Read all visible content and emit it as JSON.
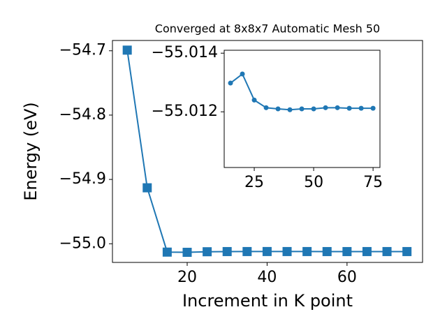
{
  "chart_data": [
    {
      "type": "line",
      "title": "Converged at 8x8x7 Automatic Mesh 50",
      "xlabel": "Increment in K point",
      "ylabel": "Energy (eV)",
      "x": [
        5,
        10,
        15,
        20,
        25,
        30,
        35,
        40,
        45,
        50,
        55,
        60,
        65,
        70,
        75
      ],
      "values": [
        -54.699,
        -54.913,
        -55.01298,
        -55.01329,
        -55.0124,
        -55.01214,
        -55.0121,
        -55.01207,
        -55.0121,
        -55.0121,
        -55.01214,
        -55.01214,
        -55.01212,
        -55.01212,
        -55.01212
      ],
      "color": "#1f77b4",
      "marker": "square",
      "xlim": [
        1.3,
        78.9
      ],
      "ylim": [
        -55.029,
        -54.684
      ],
      "xticks": [
        20,
        40,
        60
      ],
      "yticks": [
        {
          "value": -54.7,
          "label": "−54.7"
        },
        {
          "value": -54.8,
          "label": "−54.8"
        },
        {
          "value": -54.9,
          "label": "−54.9"
        },
        {
          "value": -55.0,
          "label": "−55.0"
        }
      ]
    },
    {
      "type": "line",
      "x": [
        15,
        20,
        25,
        30,
        35,
        40,
        45,
        50,
        55,
        60,
        65,
        70,
        75
      ],
      "values": [
        -55.01298,
        -55.01329,
        -55.0124,
        -55.01214,
        -55.0121,
        -55.01207,
        -55.0121,
        -55.0121,
        -55.01214,
        -55.01214,
        -55.01212,
        -55.01212,
        -55.01212
      ],
      "color": "#1f77b4",
      "marker": "circle",
      "xlim": [
        12.35,
        77.9
      ],
      "ylim": [
        -55.0101,
        -55.0141
      ],
      "xticks": [
        25,
        50,
        75
      ],
      "yticks": [
        {
          "value": -55.014,
          "label": "−55.014"
        },
        {
          "value": -55.012,
          "label": "−55.012"
        }
      ]
    }
  ]
}
